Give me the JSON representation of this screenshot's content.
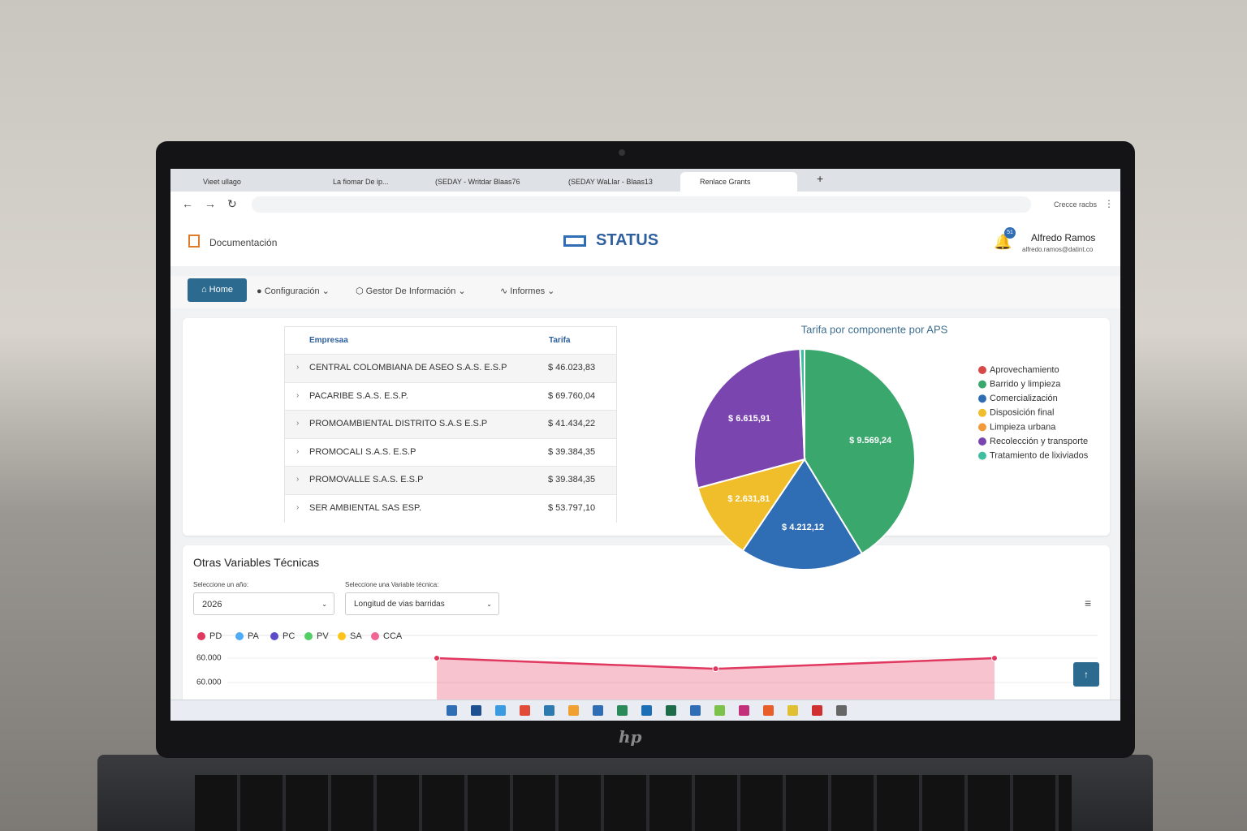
{
  "browser": {
    "tabs": [
      "Vieet ullago",
      "La fiomar De ip...",
      "(SEDAY - Writdar Blaas76",
      "(SEDAY WaLlar - Blaas13",
      "Renlace Grants"
    ],
    "address_right": "Crecce racbs"
  },
  "header": {
    "link": "Documentación",
    "logo": "STATUS",
    "notifications": "51",
    "user_name": "Alfredo Ramos",
    "user_email": "alfredo.ramos@datint.co"
  },
  "nav": [
    "Home",
    "Configuración",
    "Gestor De Información",
    "Informes"
  ],
  "table": {
    "columns": [
      "Empresaa",
      "Tarifa"
    ],
    "rows": [
      [
        "CENTRAL COLOMBIANA DE ASEO S.A.S. E.S.P",
        "$ 46.023,83"
      ],
      [
        "PACARIBE S.A.S. E.S.P.",
        "$ 69.760,04"
      ],
      [
        "PROMOAMBIENTAL DISTRITO S.A.S E.S.P",
        "$ 41.434,22"
      ],
      [
        "PROMOCALI S.A.S. E.S.P",
        "$ 39.384,35"
      ],
      [
        "PROMOVALLE S.A.S. E.S.P",
        "$ 39.384,35"
      ],
      [
        "SER AMBIENTAL SAS ESP.",
        "$ 53.797,10"
      ]
    ]
  },
  "chart_data": [
    {
      "type": "pie",
      "title": "Tarifa por componente por APS",
      "categories": [
        "Aprovechamiento",
        "Barrido y limpieza",
        "Comercialización",
        "Disposición final",
        "Limpieza urbana",
        "Recolección y transporte",
        "Tratamiento de lixiviados"
      ],
      "values": [
        0,
        9569.24,
        4212.12,
        2631.81,
        0,
        6615.91,
        150
      ],
      "value_labels": [
        null,
        "$ 9.569,24",
        "$ 4.212,12",
        "$ 2.631,81",
        null,
        "$ 6.615,91",
        null
      ],
      "colors": [
        "#d94848",
        "#3aa76d",
        "#2f6db5",
        "#f0be2a",
        "#f09a3a",
        "#7b45b0",
        "#3fbf9f"
      ]
    },
    {
      "type": "line",
      "categories": [
        null,
        null,
        null
      ],
      "series": [
        {
          "name": "PD",
          "color": "#e0385f",
          "values": [
            60000.4,
            60000.05,
            60000.4
          ]
        },
        {
          "name": "PA",
          "color": "#4dabf7",
          "values": [
            null,
            null,
            null
          ]
        },
        {
          "name": "PC",
          "color": "#5c4bc9",
          "values": [
            null,
            null,
            null
          ]
        },
        {
          "name": "PV",
          "color": "#51cf66",
          "values": [
            null,
            null,
            null
          ]
        },
        {
          "name": "SA",
          "color": "#fcc419",
          "values": [
            null,
            null,
            null
          ]
        },
        {
          "name": "CCA",
          "color": "#f06595",
          "values": [
            null,
            null,
            null
          ]
        }
      ],
      "ylim": [
        59999.2,
        60000.6
      ],
      "yticks": [
        {
          "value": 60000.4,
          "label": "60.000"
        },
        {
          "value": 59999.6,
          "label": "60.000"
        }
      ],
      "area": true
    }
  ],
  "variables": {
    "title": "Otras Variables Técnicas",
    "year_label": "Seleccione un año:",
    "year": "2026",
    "variable_label": "Seleccione una Variable técnica:",
    "variable": "Longitud de vias barridas"
  },
  "laptop_brand": "hp"
}
